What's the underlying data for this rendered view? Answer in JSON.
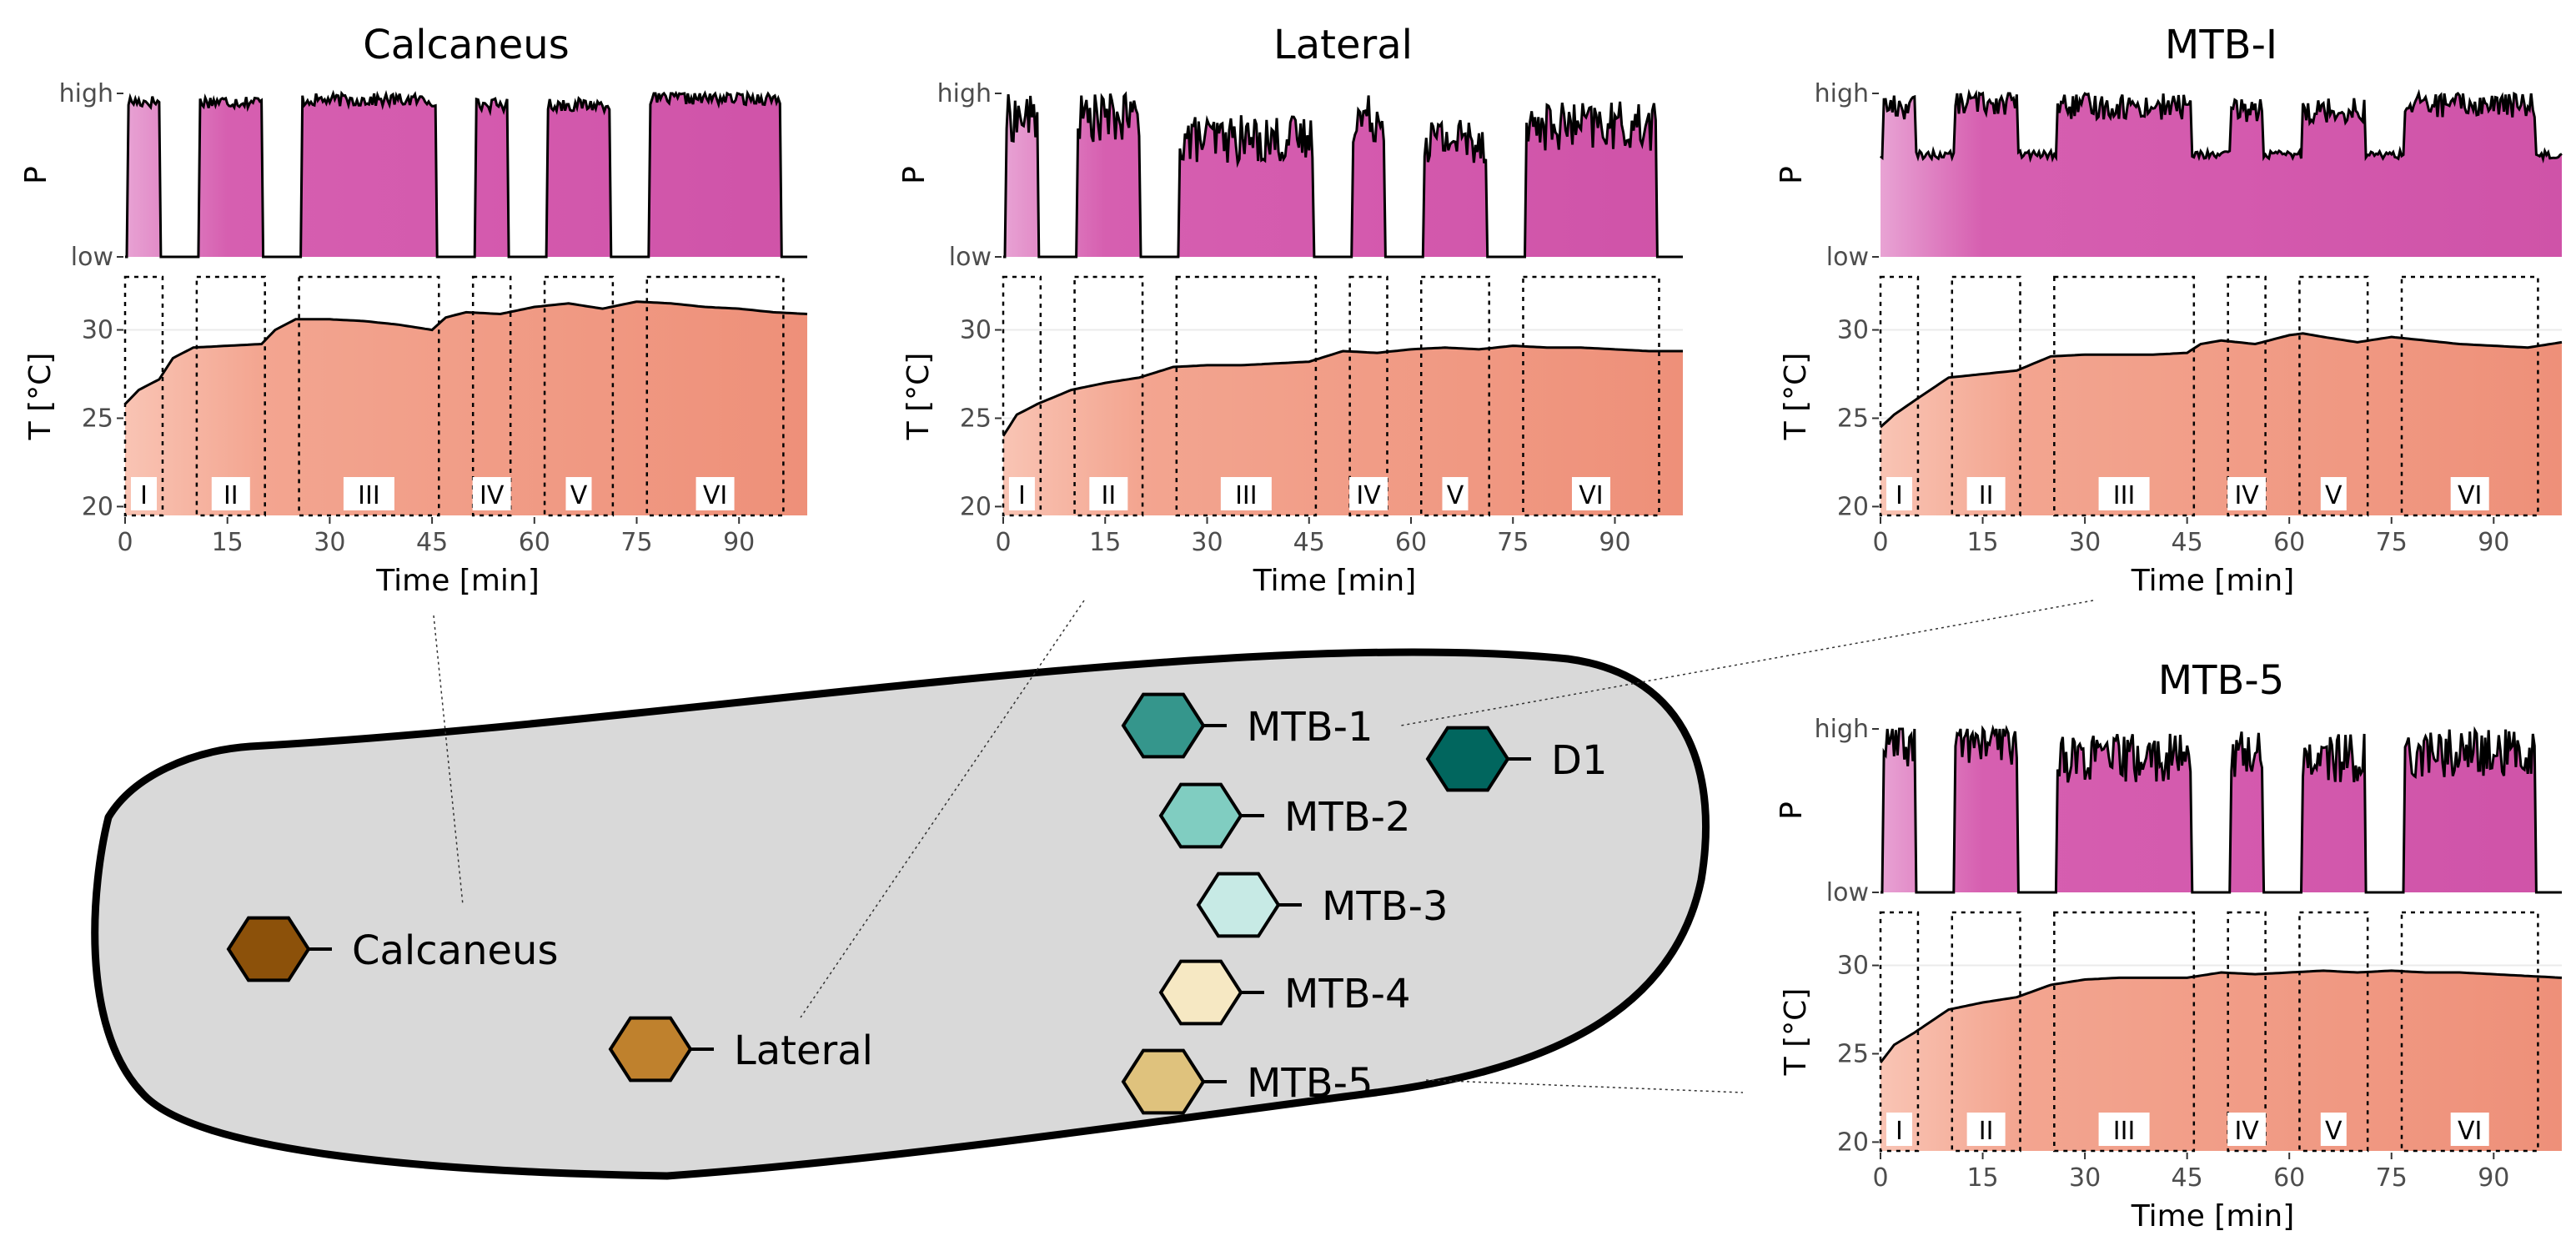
{
  "chart_data": {
    "type": "area",
    "x_label": "Time [min]",
    "x_ticks": [
      0,
      15,
      30,
      45,
      60,
      75,
      90
    ],
    "x_range": [
      0,
      100
    ],
    "pressure_axis": {
      "label": "P",
      "ticks": [
        "low",
        "high"
      ]
    },
    "temperature_axis": {
      "label": "T [°C]",
      "ticks": [
        20,
        25,
        30
      ],
      "range": [
        19.5,
        33
      ]
    },
    "phases": [
      {
        "label": "I",
        "start": 0,
        "end": 5.5
      },
      {
        "label": "II",
        "start": 10.5,
        "end": 20.5
      },
      {
        "label": "III",
        "start": 25.5,
        "end": 46
      },
      {
        "label": "IV",
        "start": 51,
        "end": 56.5
      },
      {
        "label": "V",
        "start": 61.5,
        "end": 71.5
      },
      {
        "label": "VI",
        "start": 76.5,
        "end": 96.5
      }
    ],
    "panels": [
      {
        "id": "calcaneus",
        "title": "Calcaneus",
        "pressure_levels": [
          0.95,
          0.95,
          0.96,
          0.93,
          0.93,
          0.97
        ],
        "pressure_noise": 0.04,
        "temperature": {
          "x": [
            0,
            2,
            5,
            7,
            10,
            15,
            20,
            22,
            25,
            30,
            35,
            40,
            45,
            47,
            50,
            55,
            60,
            65,
            70,
            75,
            80,
            85,
            90,
            95,
            100
          ],
          "y": [
            25.8,
            26.6,
            27.2,
            28.4,
            29.0,
            29.1,
            29.2,
            30.0,
            30.6,
            30.6,
            30.5,
            30.3,
            30.0,
            30.7,
            31.0,
            30.9,
            31.3,
            31.5,
            31.2,
            31.6,
            31.5,
            31.3,
            31.2,
            31.0,
            30.9
          ]
        }
      },
      {
        "id": "lateral",
        "title": "Lateral",
        "pressure_levels": [
          0.85,
          0.85,
          0.72,
          0.85,
          0.72,
          0.8
        ],
        "pressure_noise": 0.15,
        "temperature": {
          "x": [
            0,
            2,
            5,
            10,
            15,
            20,
            25,
            30,
            35,
            40,
            45,
            50,
            55,
            60,
            65,
            70,
            75,
            80,
            85,
            90,
            95,
            100
          ],
          "y": [
            24.0,
            25.2,
            25.8,
            26.6,
            27.0,
            27.3,
            27.9,
            28.0,
            28.0,
            28.1,
            28.2,
            28.8,
            28.7,
            28.9,
            29.0,
            28.9,
            29.1,
            29.0,
            29.0,
            28.9,
            28.8,
            28.8
          ]
        }
      },
      {
        "id": "mtb1",
        "title": "MTB-I",
        "pressure_levels": [
          0.92,
          0.95,
          0.92,
          0.9,
          0.9,
          0.93
        ],
        "pressure_noise": 0.08,
        "pressure_floor": 0.6,
        "temperature": {
          "x": [
            0,
            2,
            5,
            10,
            15,
            20,
            25,
            30,
            35,
            40,
            45,
            47,
            50,
            55,
            60,
            62,
            65,
            70,
            75,
            80,
            85,
            90,
            95,
            100
          ],
          "y": [
            24.5,
            25.2,
            26.0,
            27.3,
            27.5,
            27.7,
            28.5,
            28.6,
            28.6,
            28.6,
            28.7,
            29.2,
            29.4,
            29.2,
            29.7,
            29.8,
            29.6,
            29.3,
            29.6,
            29.4,
            29.2,
            29.1,
            29.0,
            29.3
          ]
        }
      },
      {
        "id": "mtb5",
        "title": "MTB-5",
        "pressure_levels": [
          0.9,
          0.92,
          0.82,
          0.85,
          0.82,
          0.85
        ],
        "pressure_noise": 0.15,
        "temperature": {
          "x": [
            0,
            2,
            5,
            10,
            15,
            20,
            25,
            30,
            35,
            40,
            45,
            50,
            55,
            60,
            65,
            70,
            75,
            80,
            85,
            90,
            95,
            100
          ],
          "y": [
            24.5,
            25.5,
            26.2,
            27.5,
            27.9,
            28.2,
            28.9,
            29.2,
            29.3,
            29.3,
            29.3,
            29.6,
            29.5,
            29.6,
            29.7,
            29.6,
            29.7,
            29.6,
            29.6,
            29.5,
            29.4,
            29.3
          ]
        }
      }
    ]
  },
  "insole": {
    "sensors": [
      {
        "id": "mtb1",
        "label": "MTB-1",
        "color": "#35968c"
      },
      {
        "id": "mtb2",
        "label": "MTB-2",
        "color": "#80cdc1"
      },
      {
        "id": "mtb3",
        "label": "MTB-3",
        "color": "#c7eae5"
      },
      {
        "id": "mtb4",
        "label": "MTB-4",
        "color": "#f6e8c3"
      },
      {
        "id": "mtb5",
        "label": "MTB-5",
        "color": "#dfc27d"
      },
      {
        "id": "d1",
        "label": "D1",
        "color": "#01665e"
      },
      {
        "id": "calcaneus",
        "label": "Calcaneus",
        "color": "#8c510a"
      },
      {
        "id": "lateral",
        "label": "Lateral",
        "color": "#bf812d"
      }
    ]
  },
  "colors": {
    "pressure_fill": "#d55fb0",
    "temperature_fill": "#f09f8a",
    "insole_fill": "#d9d9d9"
  }
}
